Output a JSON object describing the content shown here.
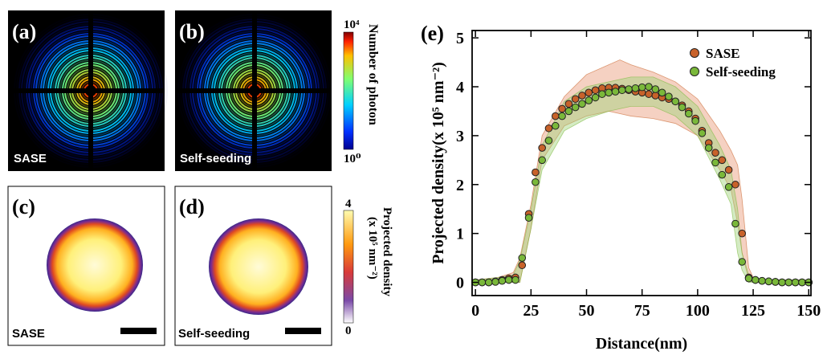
{
  "panels": [
    {
      "label": "(a)",
      "caption": "SASE"
    },
    {
      "label": "(b)",
      "caption": "Self-seeding"
    },
    {
      "label": "(c)",
      "caption": "SASE"
    },
    {
      "label": "(d)",
      "caption": "Self-seeding"
    }
  ],
  "colorbar_photon": {
    "title": "Number of photon",
    "max": "10⁴",
    "min": "10⁰"
  },
  "colorbar_density": {
    "title_lines": [
      "Projected density",
      "(x 10⁵ nm⁻²)"
    ],
    "max": 4,
    "min": 0
  },
  "chart_data": {
    "type": "scatter",
    "title": "(e)",
    "x_label": "Distance(nm)",
    "y_label": "Projected density(x 10⁵ nm⁻²)",
    "x": [
      0,
      3,
      6,
      9,
      12,
      15,
      18,
      21,
      24,
      27,
      30,
      33,
      36,
      39,
      42,
      45,
      48,
      51,
      54,
      57,
      60,
      63,
      66,
      69,
      72,
      75,
      78,
      81,
      84,
      87,
      90,
      93,
      96,
      99,
      102,
      105,
      108,
      111,
      114,
      117,
      120,
      123,
      126,
      129,
      132,
      135,
      138,
      141,
      144,
      147,
      150
    ],
    "band_x": [
      0,
      10,
      17,
      20,
      25,
      30,
      40,
      50,
      60,
      65,
      70,
      80,
      90,
      100,
      110,
      115,
      118,
      120,
      123,
      125,
      130,
      140,
      150
    ],
    "series": [
      {
        "name": "SASE",
        "color": "#c8622a",
        "band_color": "#e89a78",
        "values": [
          0,
          0,
          0,
          0.02,
          0.05,
          0.08,
          0.1,
          0.35,
          1.4,
          2.25,
          2.75,
          3.15,
          3.4,
          3.55,
          3.65,
          3.75,
          3.82,
          3.88,
          3.93,
          3.97,
          3.98,
          3.98,
          3.96,
          3.93,
          3.9,
          3.88,
          3.85,
          3.82,
          3.78,
          3.75,
          3.7,
          3.62,
          3.5,
          3.35,
          3.1,
          2.85,
          2.65,
          2.5,
          2.3,
          2.0,
          1.0,
          0.1,
          0.05,
          0.03,
          0.02,
          0.01,
          0,
          0,
          0,
          0,
          0
        ],
        "band_lower": [
          0,
          0,
          0,
          0,
          1.1,
          2.5,
          3.2,
          3.4,
          3.5,
          3.45,
          3.4,
          3.35,
          3.25,
          3.0,
          2.3,
          1.9,
          1.2,
          0.6,
          0.05,
          0,
          0,
          0,
          0
        ],
        "band_upper": [
          0.05,
          0.1,
          0.2,
          0.5,
          1.6,
          3.0,
          3.8,
          4.25,
          4.45,
          4.55,
          4.45,
          4.3,
          4.1,
          3.75,
          3.1,
          2.7,
          2.4,
          1.7,
          0.3,
          0.1,
          0.05,
          0.05,
          0.05
        ]
      },
      {
        "name": "Self-seeding",
        "color": "#7ab83a",
        "band_color": "#9fd27a",
        "values": [
          0,
          0,
          0,
          0.01,
          0.03,
          0.05,
          0.05,
          0.5,
          1.32,
          2.05,
          2.5,
          2.9,
          3.2,
          3.4,
          3.5,
          3.58,
          3.65,
          3.72,
          3.78,
          3.85,
          3.88,
          3.9,
          3.93,
          3.95,
          3.97,
          3.99,
          4.0,
          3.95,
          3.88,
          3.8,
          3.7,
          3.58,
          3.45,
          3.3,
          3.05,
          2.75,
          2.45,
          2.2,
          1.95,
          1.2,
          0.42,
          0.08,
          0.05,
          0.03,
          0.02,
          0.01,
          0,
          0,
          0,
          0,
          0
        ],
        "band_lower": [
          0,
          0,
          0,
          0,
          1.1,
          2.3,
          3.1,
          3.35,
          3.5,
          3.55,
          3.6,
          3.6,
          3.4,
          3.0,
          2.1,
          1.6,
          0.6,
          0.25,
          0,
          0,
          0,
          0,
          0
        ],
        "band_upper": [
          0.05,
          0.1,
          0.15,
          0.45,
          1.5,
          2.8,
          3.7,
          4.0,
          4.1,
          4.15,
          4.2,
          4.2,
          4.0,
          3.6,
          2.8,
          2.3,
          1.5,
          0.6,
          0.15,
          0.05,
          0.05,
          0.05,
          0.05
        ]
      }
    ],
    "xlim": [
      -1.5,
      151
    ],
    "ylim": [
      -0.27,
      5.15
    ],
    "xticks": [
      0,
      25,
      50,
      75,
      100,
      125,
      150
    ],
    "yticks": [
      0,
      1,
      2,
      3,
      4,
      5
    ],
    "legend": "upper right"
  }
}
